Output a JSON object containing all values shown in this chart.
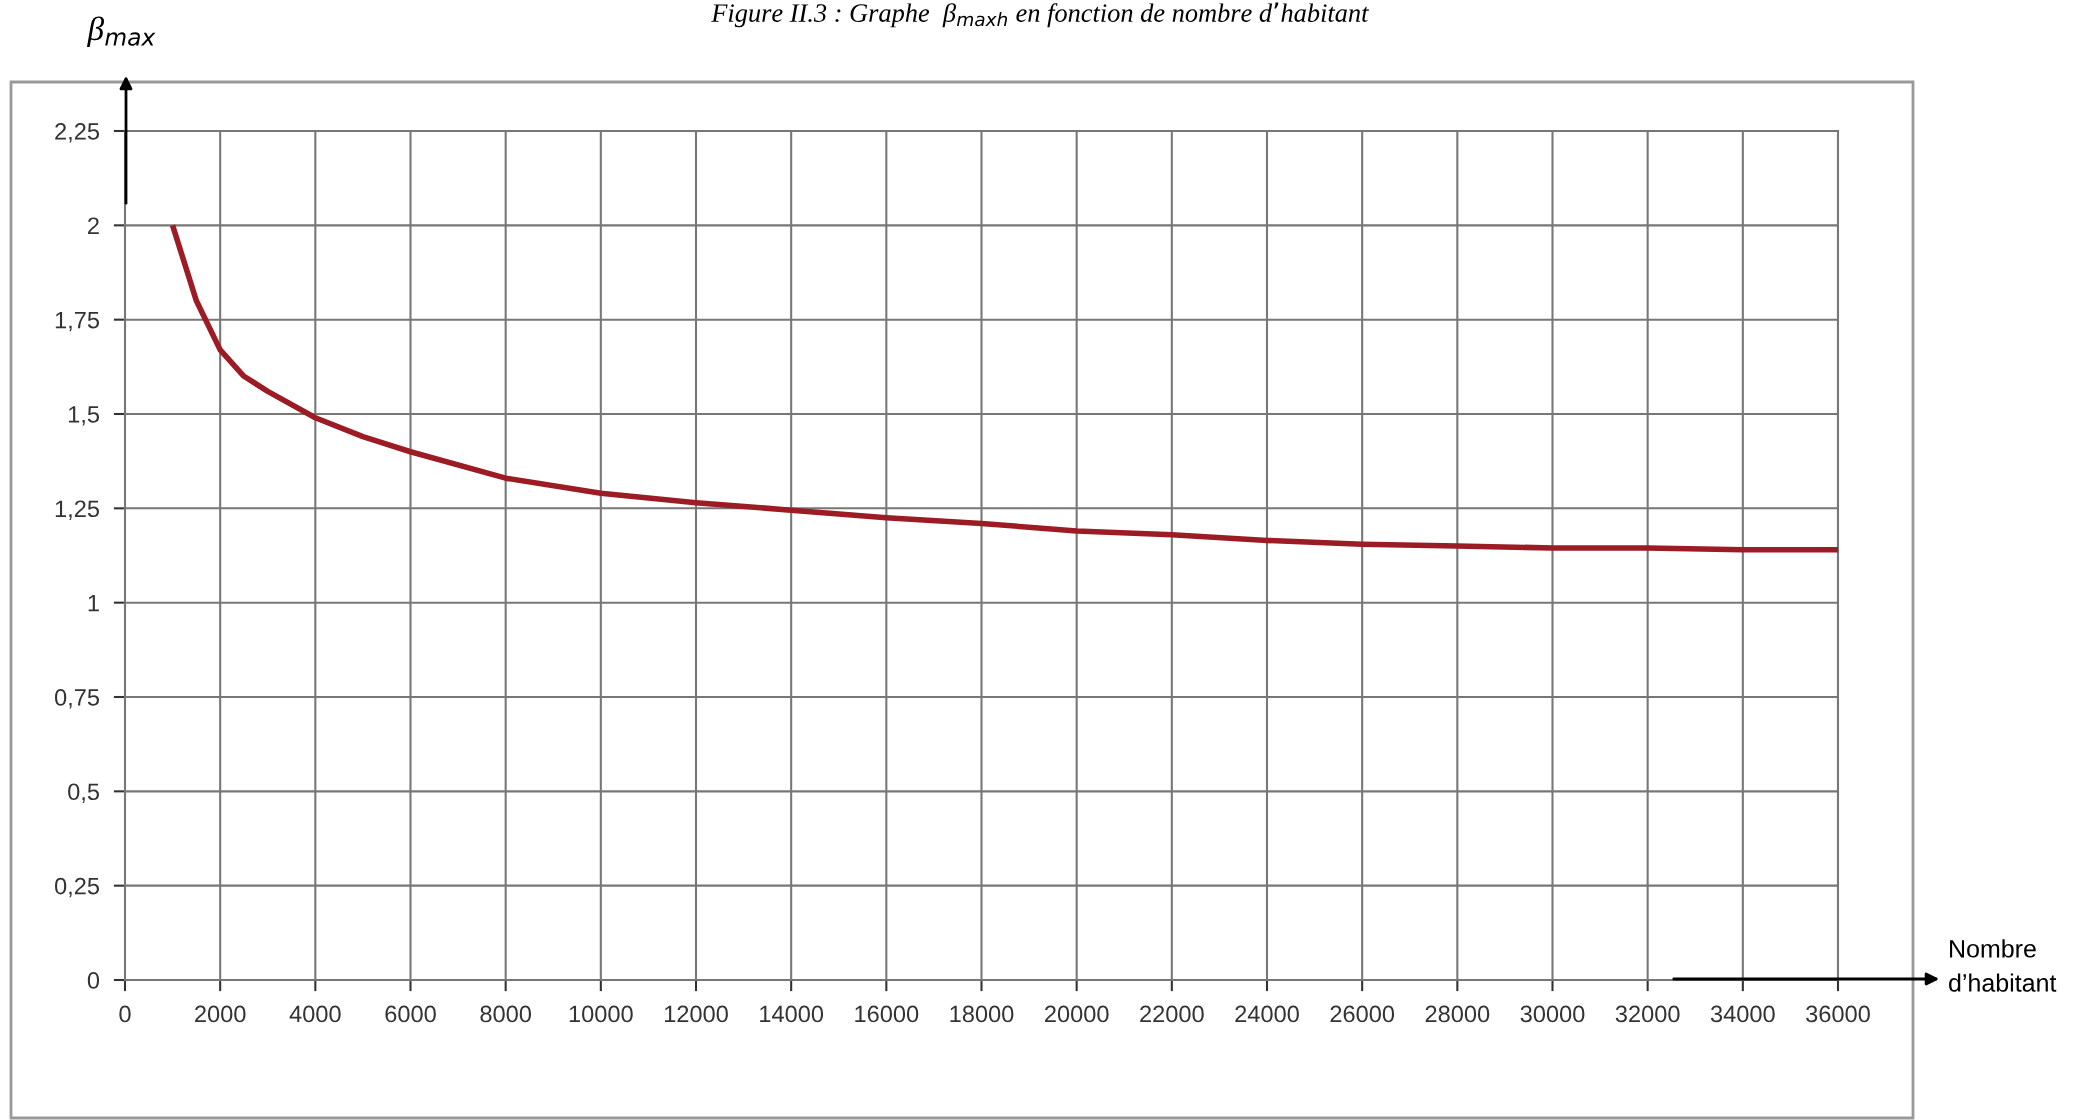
{
  "chart_data": {
    "type": "line",
    "title": "Figure II.3 : Graphe  β$_{maxh}$ en fonction de nombre d’habitant",
    "xlabel": "Nombre\nd’habitant",
    "ylabel": "β$_{max}$",
    "series": [
      {
        "color": "#9b1c24",
        "x": [
          1000,
          1500,
          2000,
          2500,
          3000,
          4000,
          5000,
          6000,
          8000,
          10000,
          12000,
          14000,
          16000,
          18000,
          20000,
          22000,
          24000,
          26000,
          28000,
          30000,
          32000,
          34000,
          36000
        ],
        "values": [
          2.0,
          1.8,
          1.67,
          1.6,
          1.56,
          1.49,
          1.44,
          1.4,
          1.33,
          1.29,
          1.265,
          1.245,
          1.225,
          1.21,
          1.19,
          1.18,
          1.165,
          1.155,
          1.15,
          1.145,
          1.145,
          1.14,
          1.14
        ]
      }
    ],
    "xlim": [
      0,
      36000
    ],
    "ylim": [
      0,
      2.25
    ],
    "xticks": [
      0,
      2000,
      4000,
      6000,
      8000,
      10000,
      12000,
      14000,
      16000,
      18000,
      20000,
      22000,
      24000,
      26000,
      28000,
      30000,
      32000,
      34000,
      36000
    ],
    "yticks": [
      0,
      {
        "value": 0.25,
        "label": "0,25"
      },
      {
        "value": 0.5,
        "label": "0,5"
      },
      {
        "value": 0.75,
        "label": "0,75"
      },
      1,
      {
        "value": 1.25,
        "label": "1,25"
      },
      {
        "value": 1.5,
        "label": "1,5"
      },
      {
        "value": 1.75,
        "label": "1,75"
      },
      2,
      {
        "value": 2.25,
        "label": "2,25"
      }
    ],
    "grid": true,
    "marker": "none",
    "line_style": "solid",
    "legend": false
  }
}
